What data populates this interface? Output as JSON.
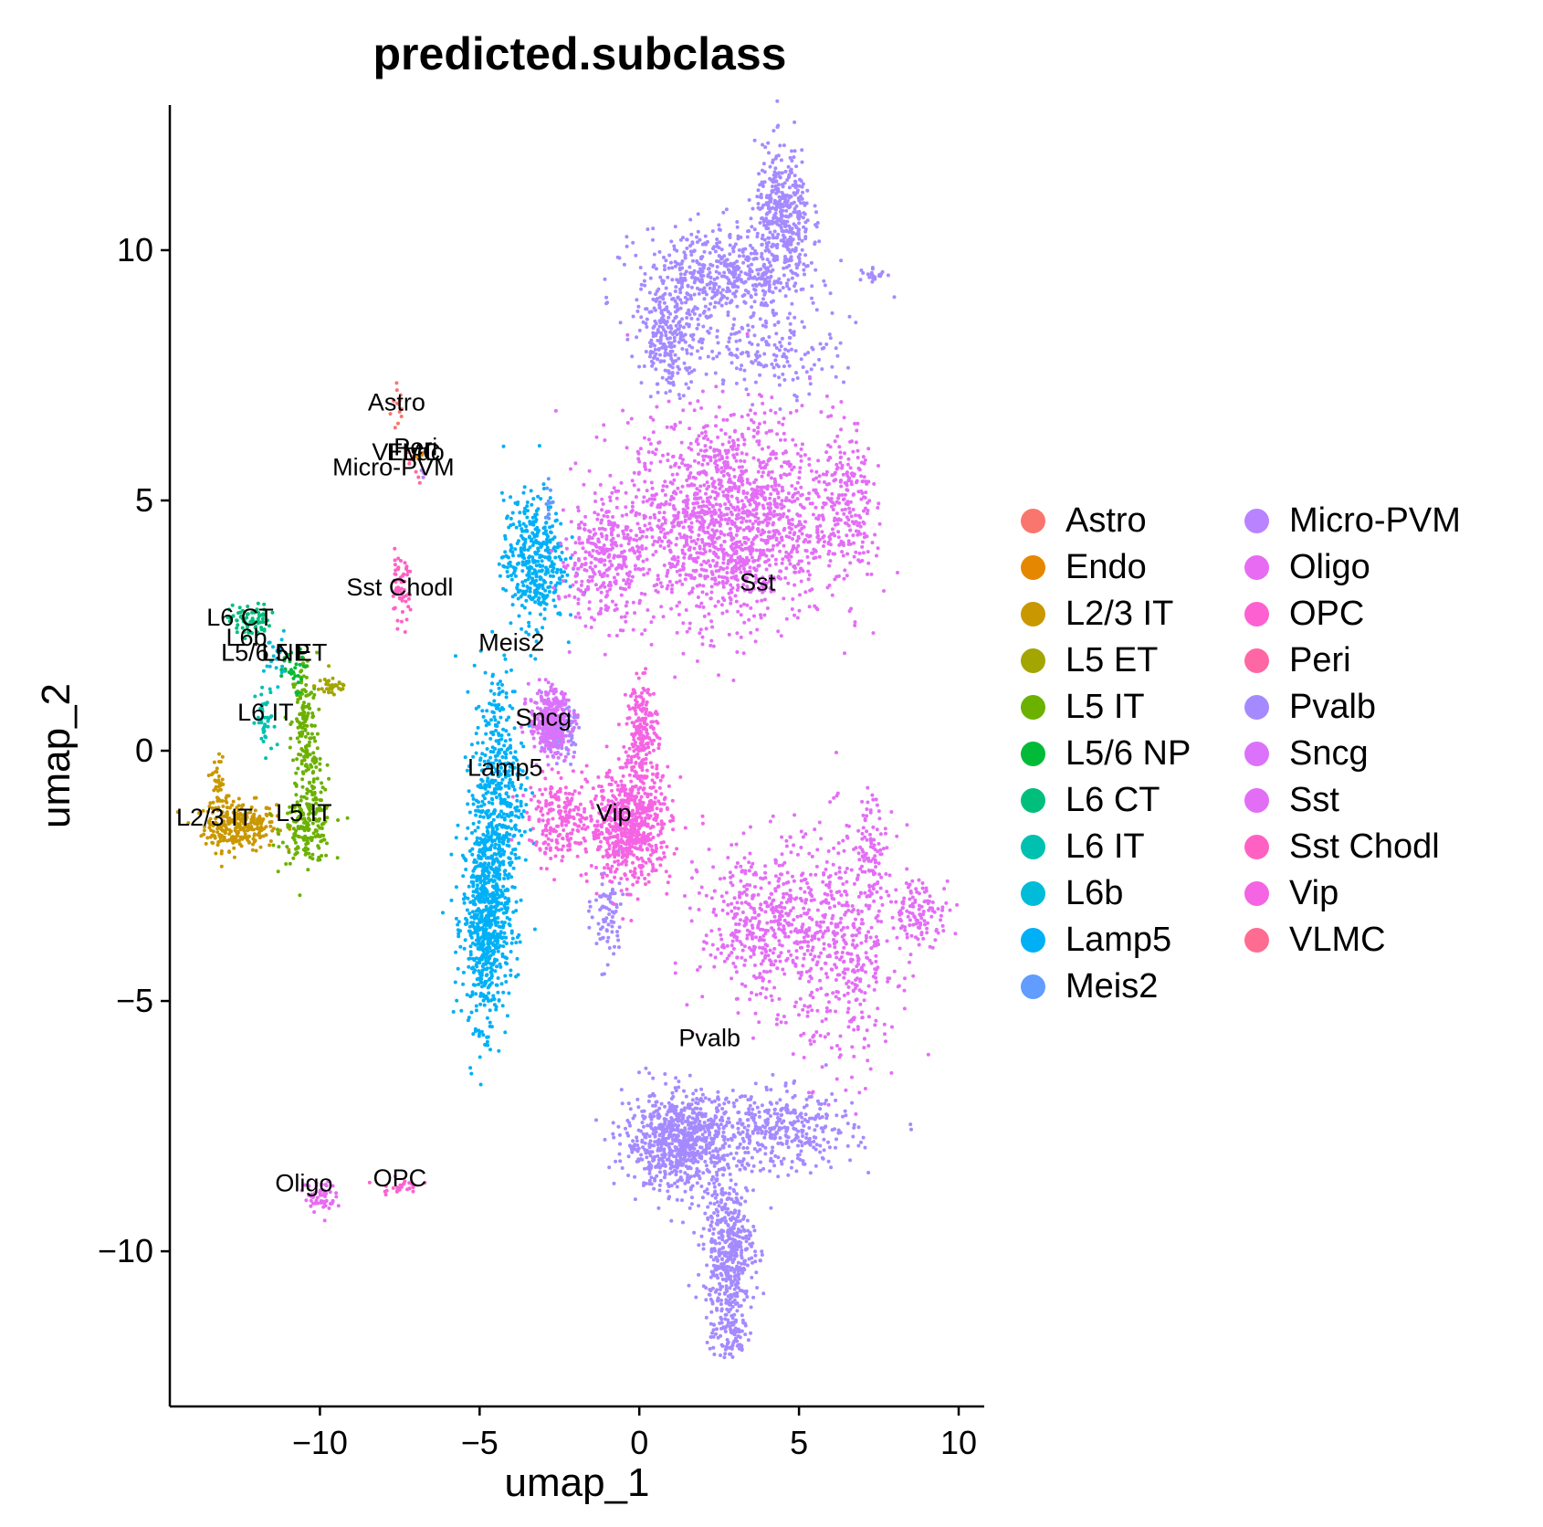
{
  "chart_data": {
    "type": "scatter",
    "title": "predicted.subclass",
    "xlabel": "umap_1",
    "ylabel": "umap_2",
    "xlim": [
      -14.7,
      10.8
    ],
    "ylim": [
      -13.1,
      12.9
    ],
    "xticks": [
      -10,
      -5,
      0,
      5,
      10
    ],
    "xtick_labels": [
      "−10",
      "−5",
      "0",
      "5",
      "10"
    ],
    "yticks": [
      -10,
      -5,
      0,
      5,
      10
    ],
    "ytick_labels": [
      "−10",
      "−5",
      "0",
      "5",
      "10"
    ],
    "grid": false,
    "legend_position": "right",
    "legend_columns": 2,
    "series": [
      {
        "name": "Astro",
        "color": "#F8766D",
        "label_at": [
          -7.6,
          6.8
        ],
        "clusters": [
          [
            -7.55,
            6.9,
            0.15,
            0.4,
            14
          ]
        ]
      },
      {
        "name": "Endo",
        "color": "#E58700",
        "label_at": [
          -7.0,
          5.8
        ],
        "clusters": [
          [
            -6.9,
            5.8,
            0.1,
            0.15,
            4
          ]
        ]
      },
      {
        "name": "L2/3 IT",
        "color": "#C99800",
        "label_at": [
          -13.3,
          -1.5
        ],
        "clusters": [
          [
            -12.5,
            -1.5,
            0.7,
            0.3,
            260
          ],
          [
            -13.2,
            -1.0,
            0.2,
            0.5,
            60
          ]
        ]
      },
      {
        "name": "L5 ET",
        "color": "#A3A500",
        "label_at": [
          -10.8,
          1.8
        ],
        "clusters": [
          [
            -9.6,
            1.3,
            0.35,
            0.15,
            40
          ]
        ]
      },
      {
        "name": "L5 IT",
        "color": "#6BB100",
        "label_at": [
          -10.5,
          -1.4
        ],
        "clusters": [
          [
            -10.4,
            -1.6,
            0.5,
            0.4,
            170
          ],
          [
            -10.5,
            0.5,
            0.25,
            0.9,
            150
          ],
          [
            -10.2,
            -0.6,
            0.25,
            0.5,
            60
          ]
        ]
      },
      {
        "name": "L5/6 NP",
        "color": "#00BA38",
        "label_at": [
          -11.7,
          1.8
        ],
        "clusters": [
          [
            -11.0,
            1.6,
            0.3,
            0.3,
            30
          ]
        ]
      },
      {
        "name": "L6 CT",
        "color": "#00BF7D",
        "label_at": [
          -12.5,
          2.5
        ],
        "clusters": [
          [
            -12.2,
            2.6,
            0.4,
            0.2,
            80
          ]
        ]
      },
      {
        "name": "L6 IT",
        "color": "#00C0AF",
        "label_at": [
          -11.7,
          0.6
        ],
        "clusters": [
          [
            -11.7,
            0.5,
            0.2,
            0.5,
            40
          ]
        ]
      },
      {
        "name": "L6b",
        "color": "#00BCD8",
        "label_at": [
          -12.3,
          2.1
        ],
        "clusters": [
          [
            -11.4,
            1.9,
            0.2,
            0.3,
            20
          ]
        ]
      },
      {
        "name": "Lamp5",
        "color": "#00B0F6",
        "label_at": [
          -4.2,
          -0.5
        ],
        "clusters": [
          [
            -4.8,
            -3.4,
            0.45,
            1.3,
            700
          ],
          [
            -4.4,
            -0.8,
            0.5,
            1.6,
            450
          ],
          [
            -3.3,
            3.8,
            0.6,
            0.8,
            400
          ]
        ]
      },
      {
        "name": "Meis2",
        "color": "#619CFF",
        "label_at": [
          -4.0,
          2.0
        ],
        "clusters": [
          [
            -2.8,
            5.0,
            0.1,
            0.25,
            15
          ]
        ]
      },
      {
        "name": "Micro-PVM",
        "color": "#B983FF",
        "label_at": [
          -7.7,
          5.5
        ],
        "clusters": [
          [
            -6.8,
            5.5,
            0.1,
            0.1,
            3
          ]
        ]
      },
      {
        "name": "Oligo",
        "color": "#E76BF3",
        "label_at": [
          -10.5,
          -8.8
        ],
        "clusters": [
          [
            -10.0,
            -8.9,
            0.3,
            0.2,
            60
          ]
        ]
      },
      {
        "name": "OPC",
        "color": "#FD61D1",
        "label_at": [
          -7.5,
          -8.7
        ],
        "clusters": [
          [
            -7.5,
            -8.7,
            0.4,
            0.1,
            25
          ]
        ]
      },
      {
        "name": "Peri",
        "color": "#FF67A4",
        "label_at": [
          -7.0,
          5.9
        ],
        "clusters": [
          [
            -7.0,
            5.5,
            0.1,
            0.1,
            3
          ]
        ]
      },
      {
        "name": "Pvalb",
        "color": "#A58AFF",
        "label_at": [
          2.2,
          -5.9
        ],
        "clusters": [
          [
            4.5,
            10.6,
            0.55,
            0.9,
            400
          ],
          [
            2.5,
            9.5,
            1.6,
            0.6,
            500
          ],
          [
            1.0,
            8.2,
            0.6,
            0.6,
            250
          ],
          [
            4.2,
            8.0,
            1.3,
            0.5,
            160
          ],
          [
            7.3,
            9.5,
            0.3,
            0.1,
            20
          ],
          [
            1.3,
            -7.8,
            1.1,
            0.6,
            800
          ],
          [
            4.5,
            -7.6,
            1.4,
            0.5,
            350
          ],
          [
            2.8,
            -10.0,
            0.5,
            0.9,
            450
          ],
          [
            2.8,
            -11.7,
            0.4,
            0.3,
            80
          ],
          [
            -2.5,
            0.4,
            0.3,
            0.3,
            150
          ],
          [
            -1.0,
            -3.3,
            0.3,
            0.6,
            80
          ]
        ]
      },
      {
        "name": "Sncg",
        "color": "#DB72FB",
        "label_at": [
          -3.0,
          0.5
        ],
        "clusters": [
          [
            -2.8,
            0.6,
            0.4,
            0.4,
            350
          ]
        ]
      },
      {
        "name": "Sst",
        "color": "#E36EF6",
        "label_at": [
          3.7,
          3.2
        ],
        "clusters": [
          [
            2.8,
            4.6,
            2.0,
            1.3,
            1600
          ],
          [
            6.5,
            5.0,
            0.5,
            1.0,
            200
          ],
          [
            6.5,
            -4.0,
            1.0,
            1.5,
            400
          ],
          [
            4.0,
            -3.5,
            1.3,
            1.0,
            500
          ],
          [
            8.8,
            -3.2,
            0.6,
            0.4,
            120
          ],
          [
            7.3,
            -2.0,
            0.3,
            0.7,
            80
          ],
          [
            -1.2,
            3.8,
            0.8,
            0.8,
            300
          ]
        ]
      },
      {
        "name": "Sst Chodl",
        "color": "#FF61C3",
        "label_at": [
          -7.5,
          3.1
        ],
        "clusters": [
          [
            -7.5,
            3.2,
            0.2,
            0.4,
            60
          ]
        ]
      },
      {
        "name": "Vip",
        "color": "#F564E3",
        "label_at": [
          -0.8,
          -1.4
        ],
        "clusters": [
          [
            -0.3,
            -1.5,
            0.8,
            0.7,
            700
          ],
          [
            0.1,
            0.4,
            0.3,
            0.6,
            200
          ],
          [
            -2.5,
            -1.4,
            0.6,
            0.5,
            200
          ]
        ]
      },
      {
        "name": "VLMC",
        "color": "#FF6C91",
        "label_at": [
          -7.3,
          5.8
        ],
        "clusters": [
          [
            -7.2,
            5.9,
            0.08,
            0.15,
            5
          ]
        ]
      }
    ]
  }
}
